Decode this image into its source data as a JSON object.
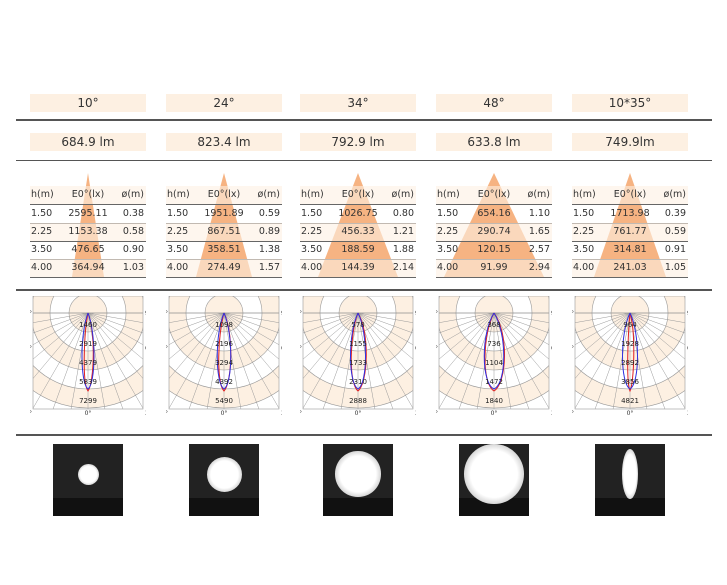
{
  "table_headers": {
    "h": "h(m)",
    "e": "E0°(lx)",
    "d": "ø(m)"
  },
  "angle_labels": {
    "n90": "-90°",
    "p90": "90°",
    "n60": "-60°",
    "p60": "60°",
    "n30": "-30°",
    "p30": "30°",
    "zero": "0°"
  },
  "colors": {
    "band": "#fdf0e2",
    "cone": "#f5a66c",
    "red": "#e02020",
    "blue": "#3030e0"
  },
  "columns": [
    {
      "beam": "10°",
      "lumen": "684.9 lm",
      "rows": [
        [
          "1.50",
          "2595.11",
          "0.38"
        ],
        [
          "2.25",
          "1153.38",
          "0.58"
        ],
        [
          "3.50",
          "476.65",
          "0.90"
        ],
        [
          "4.00",
          "364.94",
          "1.03"
        ]
      ],
      "polar": [
        "1460",
        "2919",
        "4379",
        "5839",
        "7299"
      ],
      "spot_size": 0.3
    },
    {
      "beam": "24°",
      "lumen": "823.4 lm",
      "rows": [
        [
          "1.50",
          "1951.89",
          "0.59"
        ],
        [
          "2.25",
          "867.51",
          "0.89"
        ],
        [
          "3.50",
          "358.51",
          "1.38"
        ],
        [
          "4.00",
          "274.49",
          "1.57"
        ]
      ],
      "polar": [
        "1098",
        "2196",
        "3294",
        "4392",
        "5490"
      ],
      "spot_size": 0.5
    },
    {
      "beam": "34°",
      "lumen": "792.9 lm",
      "rows": [
        [
          "1.50",
          "1026.75",
          "0.80"
        ],
        [
          "2.25",
          "456.33",
          "1.21"
        ],
        [
          "3.50",
          "188.59",
          "1.88"
        ],
        [
          "4.00",
          "144.39",
          "2.14"
        ]
      ],
      "polar": [
        "578",
        "1155",
        "1733",
        "2310",
        "2888"
      ],
      "spot_size": 0.65
    },
    {
      "beam": "48°",
      "lumen": "633.8 lm",
      "rows": [
        [
          "1.50",
          "654.16",
          "1.10"
        ],
        [
          "2.25",
          "290.74",
          "1.65"
        ],
        [
          "3.50",
          "120.15",
          "2.57"
        ],
        [
          "4.00",
          "91.99",
          "2.94"
        ]
      ],
      "polar": [
        "368",
        "736",
        "1104",
        "1472",
        "1840"
      ],
      "spot_size": 0.85
    },
    {
      "beam": "10*35°",
      "lumen": "749.9lm",
      "rows": [
        [
          "1.50",
          "1713.98",
          "0.39"
        ],
        [
          "2.25",
          "761.77",
          "0.59"
        ],
        [
          "3.50",
          "314.81",
          "0.91"
        ],
        [
          "4.00",
          "241.03",
          "1.05"
        ]
      ],
      "polar": [
        "964",
        "1928",
        "2892",
        "3856",
        "4821"
      ],
      "spot_size": 0.4
    }
  ]
}
